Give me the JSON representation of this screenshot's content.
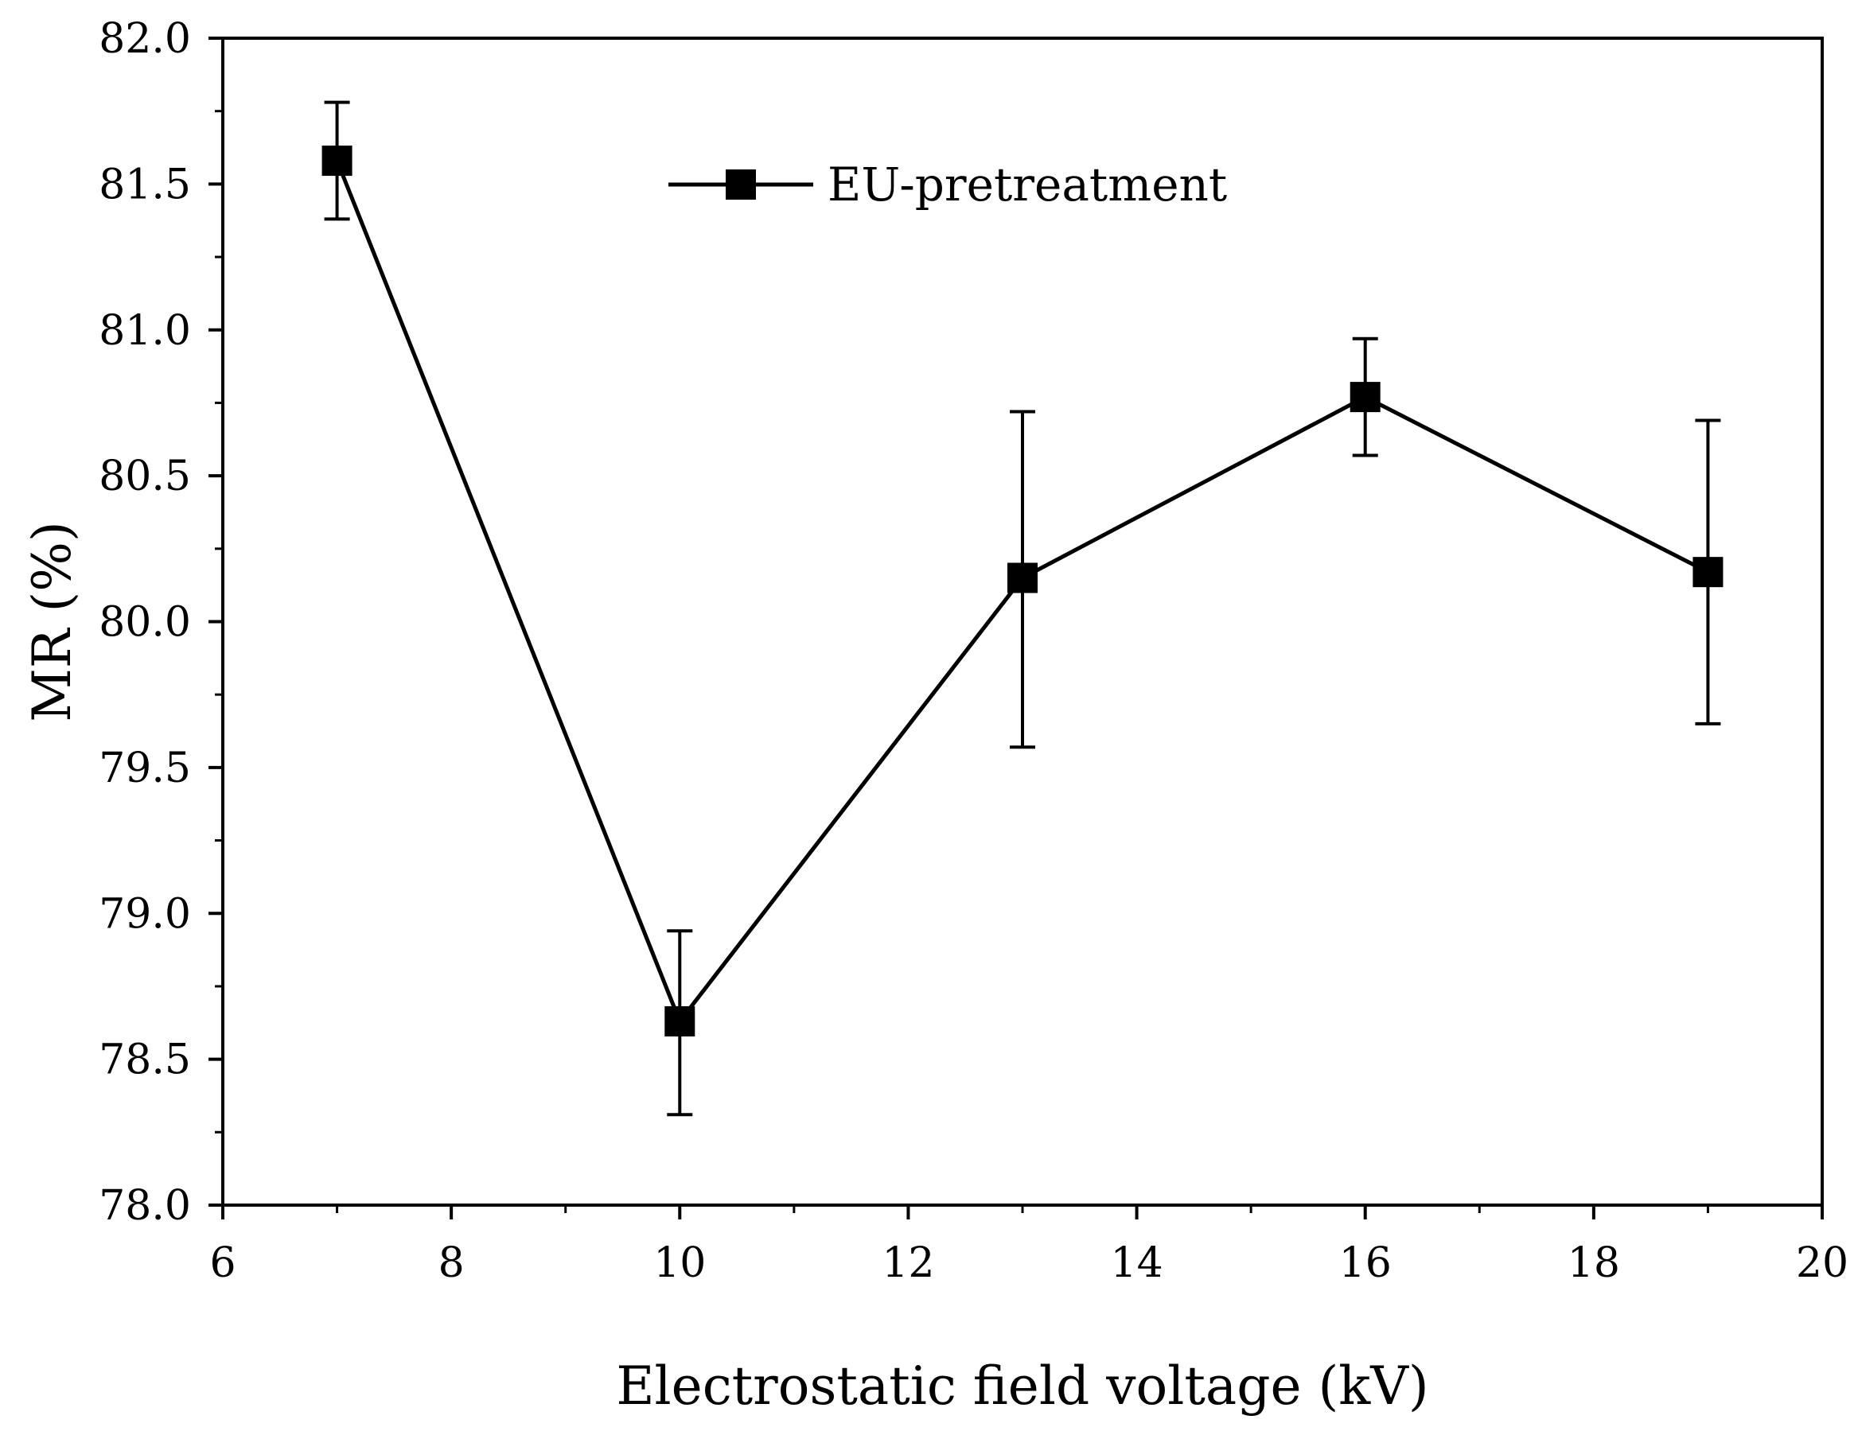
{
  "colors": {
    "line": "#000000",
    "background": "#ffffff"
  },
  "chart_data": {
    "type": "line",
    "title": "",
    "xlabel": "Electrostatic field voltage (kV)",
    "ylabel": "MR (%)",
    "xlim": [
      6,
      20
    ],
    "ylim": [
      78.0,
      82.0
    ],
    "x_major_ticks": [
      6,
      8,
      10,
      12,
      14,
      16,
      18,
      20
    ],
    "x_tick_labels": [
      "6",
      "8",
      "10",
      "12",
      "14",
      "16",
      "18",
      "20"
    ],
    "x_minor_step": 1,
    "y_major_ticks": [
      78.0,
      78.5,
      79.0,
      79.5,
      80.0,
      80.5,
      81.0,
      81.5,
      82.0
    ],
    "y_tick_labels": [
      "78.0",
      "78.5",
      "79.0",
      "79.5",
      "80.0",
      "80.5",
      "81.0",
      "81.5",
      "82.0"
    ],
    "y_minor_step": 0.25,
    "grid": false,
    "legend_position": "top-center",
    "series": [
      {
        "name": "EU-pretreatment",
        "marker": "square",
        "x": [
          7,
          10,
          13,
          16,
          19
        ],
        "y": [
          81.58,
          78.63,
          80.15,
          80.77,
          80.17
        ],
        "error_low": [
          81.38,
          78.31,
          79.57,
          80.57,
          79.65
        ],
        "error_high": [
          81.78,
          78.94,
          80.72,
          80.97,
          80.69
        ]
      }
    ]
  }
}
